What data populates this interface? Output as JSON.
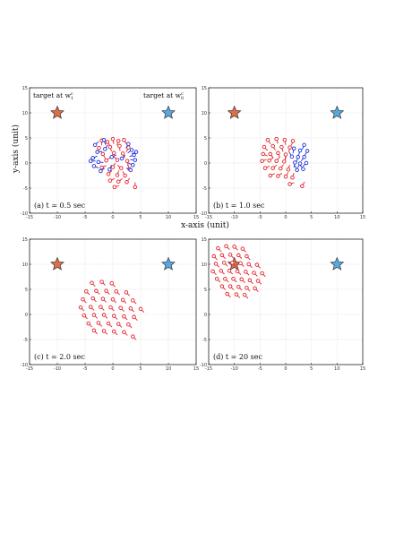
{
  "figure": {
    "xlabel": "x-axis (unit)",
    "ylabel": "y-axis (unit)",
    "target_labels": [
      "target at w",
      "target at w"
    ],
    "target_sub": [
      "1",
      "0"
    ],
    "target_sup": [
      "c",
      "c"
    ]
  },
  "chart_data": [
    {
      "type": "scatter",
      "caption": "(a) t = 0.5 sec",
      "xlim": [
        -15,
        15
      ],
      "ylim": [
        -10,
        15
      ],
      "xticks": [
        -15,
        -10,
        -5,
        0,
        5,
        10,
        15
      ],
      "yticks": [
        -10,
        -5,
        0,
        5,
        10,
        15
      ],
      "grid": true,
      "targets": [
        {
          "x": -10,
          "y": 10,
          "color": "#d9704a"
        },
        {
          "x": 10,
          "y": 10,
          "color": "#5aa7dd"
        }
      ],
      "series": [
        {
          "color": "#e4212b",
          "points": [
            [
              -2,
              4.5,
              0.0,
              -1.0
            ],
            [
              -1,
              4.2,
              0.6,
              -0.8
            ],
            [
              0,
              4.8,
              0.2,
              -1.0
            ],
            [
              1,
              4.4,
              -0.3,
              -0.9
            ],
            [
              2,
              4.6,
              0.5,
              -0.8
            ],
            [
              -2.5,
              3,
              -0.2,
              -1.0
            ],
            [
              -0.5,
              3.2,
              0.3,
              -0.9
            ],
            [
              1.2,
              3.4,
              0.1,
              -1.0
            ],
            [
              2.8,
              3.1,
              -0.4,
              -0.9
            ],
            [
              -1.8,
              1.8,
              0.5,
              -0.9
            ],
            [
              0.2,
              2,
              -0.6,
              -0.8
            ],
            [
              1.8,
              1.9,
              0.4,
              -0.9
            ],
            [
              -1.2,
              0.5,
              0.8,
              0.6
            ],
            [
              0.8,
              0.6,
              -0.7,
              0.7
            ],
            [
              2.6,
              0.4,
              0.2,
              -1.0
            ],
            [
              -2,
              -0.9,
              0.9,
              0.4
            ],
            [
              0,
              -0.8,
              0.5,
              0.8
            ],
            [
              1.5,
              -1,
              -0.8,
              0.6
            ],
            [
              3,
              -1.2,
              -0.4,
              0.9
            ],
            [
              -0.8,
              -2.2,
              0.7,
              0.7
            ],
            [
              0.8,
              -2.4,
              0.3,
              0.95
            ],
            [
              2.2,
              -2.5,
              -0.5,
              0.85
            ],
            [
              -0.5,
              -3.5,
              0.9,
              0.4
            ],
            [
              1,
              -3.7,
              0.8,
              0.6
            ],
            [
              2.5,
              -3.8,
              0.6,
              0.8
            ],
            [
              0.3,
              -4.8,
              0.9,
              0.3
            ],
            [
              4,
              -4.8,
              0,
              1.0
            ]
          ]
        },
        {
          "color": "#1a2fd6",
          "points": [
            [
              -3.2,
              3.6,
              0.7,
              0.7
            ],
            [
              -2.8,
              2.2,
              1.0,
              0.1
            ],
            [
              -3.6,
              1,
              0.9,
              0.4
            ],
            [
              -2.6,
              0.2,
              1.0,
              -0.1
            ],
            [
              -3.4,
              -0.6,
              0.9,
              -0.4
            ],
            [
              -2.2,
              -1.6,
              0.8,
              0.6
            ],
            [
              -1.4,
              2.8,
              0.5,
              0.85
            ],
            [
              -0.2,
              1.2,
              0.9,
              0.4
            ],
            [
              3.4,
              2.6,
              -0.8,
              -0.6
            ],
            [
              3.8,
              1.6,
              -0.9,
              -0.3
            ],
            [
              4,
              0.6,
              -1.0,
              0.1
            ],
            [
              3.6,
              -0.4,
              -0.9,
              0.4
            ],
            [
              3.2,
              -1.4,
              -0.9,
              0.4
            ],
            [
              2.8,
              3.8,
              -0.5,
              -0.85
            ],
            [
              -1.6,
              4.6,
              0.3,
              -0.95
            ],
            [
              1.6,
              0.9,
              0.7,
              0.7
            ],
            [
              -4,
              0.4,
              1.0,
              0
            ],
            [
              -0.6,
              -1.3,
              0.4,
              0.9
            ],
            [
              4.2,
              2.2,
              -0.9,
              -0.4
            ]
          ]
        }
      ]
    },
    {
      "type": "scatter",
      "caption": "(b) t = 1.0 sec",
      "xlim": [
        -15,
        15
      ],
      "ylim": [
        -10,
        15
      ],
      "xticks": [
        -15,
        -10,
        -5,
        0,
        5,
        10,
        15
      ],
      "yticks": [
        -10,
        -5,
        0,
        5,
        10,
        15
      ],
      "grid": true,
      "targets": [
        {
          "x": -10,
          "y": 10,
          "color": "#d9704a"
        },
        {
          "x": 10,
          "y": 10,
          "color": "#5aa7dd"
        }
      ],
      "series": [
        {
          "color": "#e4212b",
          "points": [
            [
              -3.5,
              4.6,
              0.6,
              -0.8
            ],
            [
              -1.8,
              4.8,
              0.3,
              -0.95
            ],
            [
              -0.2,
              4.6,
              0.2,
              -1.0
            ],
            [
              1.4,
              4.4,
              -0.3,
              -0.95
            ],
            [
              -4.2,
              3.2,
              0.7,
              -0.7
            ],
            [
              -2.5,
              3.4,
              0.5,
              -0.85
            ],
            [
              -0.8,
              3.2,
              0.3,
              -0.95
            ],
            [
              0.8,
              3.1,
              -0.2,
              -1.0
            ],
            [
              -4.4,
              1.8,
              0.9,
              -0.4
            ],
            [
              -3,
              1.8,
              0.6,
              -0.8
            ],
            [
              -1.5,
              2,
              0.4,
              -0.9
            ],
            [
              0,
              1.7,
              -0.1,
              -1.0
            ],
            [
              -4.6,
              0.4,
              0.9,
              0.3
            ],
            [
              -3.2,
              0.5,
              0.8,
              0.6
            ],
            [
              -1.8,
              0.4,
              0.6,
              0.8
            ],
            [
              -0.3,
              0.3,
              0.4,
              0.9
            ],
            [
              -4,
              -1,
              0.9,
              0.4
            ],
            [
              -2.5,
              -1,
              0.8,
              0.6
            ],
            [
              -1,
              -1.1,
              0.6,
              0.8
            ],
            [
              0.5,
              -1.3,
              0.3,
              0.95
            ],
            [
              -3,
              -2.5,
              0.9,
              0.4
            ],
            [
              -1.5,
              -2.6,
              0.8,
              0.6
            ],
            [
              0,
              -2.7,
              0.5,
              0.85
            ],
            [
              1.3,
              -2.9,
              0.3,
              0.95
            ],
            [
              0.8,
              -4.2,
              0.9,
              0.3
            ],
            [
              3.2,
              -4.6,
              0.5,
              0.85
            ]
          ]
        },
        {
          "color": "#1a2fd6",
          "points": [
            [
              3.6,
              3.6,
              -0.4,
              -0.9
            ],
            [
              4.2,
              2.4,
              -0.5,
              -0.85
            ],
            [
              2.8,
              2.5,
              -0.3,
              -0.95
            ],
            [
              3.6,
              1.2,
              -0.6,
              -0.8
            ],
            [
              2.4,
              1.2,
              -0.3,
              -0.95
            ],
            [
              4,
              0,
              -0.7,
              -0.7
            ],
            [
              2.8,
              -0.1,
              -0.5,
              -0.85
            ],
            [
              1.8,
              0.1,
              -0.2,
              -1.0
            ],
            [
              3.4,
              -1.2,
              -0.6,
              0.8
            ],
            [
              2.2,
              -1.4,
              -0.4,
              0.9
            ],
            [
              1.6,
              2.9,
              -0.2,
              -1.0
            ],
            [
              1.2,
              1.3,
              -0.5,
              0.85
            ]
          ]
        }
      ]
    },
    {
      "type": "scatter",
      "caption": "(c) t = 2.0 sec",
      "xlim": [
        -15,
        15
      ],
      "ylim": [
        -10,
        15
      ],
      "xticks": [
        -15,
        -10,
        -5,
        0,
        5,
        10,
        15
      ],
      "yticks": [
        -10,
        -5,
        0,
        5,
        10,
        15
      ],
      "grid": true,
      "targets": [
        {
          "x": -10,
          "y": 10,
          "color": "#d9704a"
        },
        {
          "x": 10,
          "y": 10,
          "color": "#5aa7dd"
        }
      ],
      "series": [
        {
          "color": "#e4212b",
          "points": [
            [
              -3.8,
              6.3,
              0.7,
              -0.7
            ],
            [
              -2,
              6.5,
              0.7,
              -0.7
            ],
            [
              -0.2,
              6.2,
              0.7,
              -0.7
            ],
            [
              -4.8,
              4.6,
              0.7,
              -0.7
            ],
            [
              -3,
              4.7,
              0.7,
              -0.7
            ],
            [
              -1.2,
              4.7,
              0.7,
              -0.7
            ],
            [
              0.6,
              4.6,
              0.7,
              -0.7
            ],
            [
              2.4,
              4.4,
              0.7,
              -0.7
            ],
            [
              -5.4,
              3,
              0.7,
              -0.7
            ],
            [
              -3.6,
              3.2,
              0.7,
              -0.7
            ],
            [
              -1.8,
              3.1,
              0.7,
              -0.7
            ],
            [
              0,
              3,
              0.7,
              -0.7
            ],
            [
              1.8,
              2.9,
              0.7,
              -0.7
            ],
            [
              3.6,
              2.8,
              0.7,
              -0.7
            ],
            [
              -5.8,
              1.4,
              0.7,
              -0.7
            ],
            [
              -4,
              1.5,
              0.7,
              -0.7
            ],
            [
              -2.2,
              1.5,
              0.7,
              -0.7
            ],
            [
              -0.4,
              1.4,
              0.7,
              -0.7
            ],
            [
              1.4,
              1.3,
              0.7,
              -0.7
            ],
            [
              3.2,
              1.2,
              0.7,
              -0.7
            ],
            [
              5,
              1.1,
              0.7,
              -0.7
            ],
            [
              -5.2,
              -0.2,
              0.7,
              -0.7
            ],
            [
              -3.4,
              -0.1,
              0.7,
              -0.7
            ],
            [
              -1.6,
              -0.1,
              0.7,
              -0.7
            ],
            [
              0.2,
              -0.3,
              0.7,
              -0.7
            ],
            [
              2,
              -0.4,
              0.7,
              -0.7
            ],
            [
              3.8,
              -0.5,
              0.7,
              -0.7
            ],
            [
              -4.4,
              -1.8,
              0.7,
              -0.7
            ],
            [
              -2.6,
              -1.7,
              0.7,
              -0.7
            ],
            [
              -0.8,
              -1.8,
              0.7,
              -0.7
            ],
            [
              1,
              -1.9,
              0.7,
              -0.7
            ],
            [
              2.8,
              -2,
              0.7,
              -0.7
            ],
            [
              -3.4,
              -3.2,
              0.7,
              -0.7
            ],
            [
              -1.6,
              -3.3,
              0.7,
              -0.7
            ],
            [
              0.2,
              -3.4,
              0.7,
              -0.7
            ],
            [
              2,
              -3.5,
              0.7,
              -0.7
            ],
            [
              3.6,
              -4.4,
              0.7,
              -0.7
            ]
          ]
        }
      ]
    },
    {
      "type": "scatter",
      "caption": "(d) t = 20 sec",
      "xlim": [
        -15,
        15
      ],
      "ylim": [
        -10,
        15
      ],
      "xticks": [
        -15,
        -10,
        -5,
        0,
        5,
        10,
        15
      ],
      "yticks": [
        -10,
        -5,
        0,
        5,
        10,
        15
      ],
      "grid": true,
      "targets": [
        {
          "x": -10,
          "y": 10,
          "color": "#d9704a"
        },
        {
          "x": 10,
          "y": 10,
          "color": "#5aa7dd"
        }
      ],
      "series": [
        {
          "color": "#e4212b",
          "points": [
            [
              -13.2,
              13.2,
              0.7,
              -0.7
            ],
            [
              -11.6,
              13.6,
              0.7,
              -0.7
            ],
            [
              -10,
              13.5,
              0.7,
              -0.7
            ],
            [
              -8.4,
              13.1,
              0.7,
              -0.7
            ],
            [
              -14,
              11.6,
              0.7,
              -0.7
            ],
            [
              -12.4,
              11.8,
              0.7,
              -0.7
            ],
            [
              -10.8,
              11.9,
              0.7,
              -0.7
            ],
            [
              -9.2,
              11.8,
              0.7,
              -0.7
            ],
            [
              -7.6,
              11.6,
              0.7,
              -0.7
            ],
            [
              -13.6,
              10.1,
              0.7,
              -0.7
            ],
            [
              -12,
              10.3,
              0.7,
              -0.7
            ],
            [
              -10.4,
              10.3,
              0.7,
              -0.7
            ],
            [
              -8.8,
              10.2,
              0.7,
              -0.7
            ],
            [
              -7.2,
              10,
              0.7,
              -0.7
            ],
            [
              -5.6,
              9.9,
              0.7,
              -0.7
            ],
            [
              -14.2,
              8.6,
              0.7,
              -0.7
            ],
            [
              -12.6,
              8.7,
              0.7,
              -0.7
            ],
            [
              -11,
              8.7,
              0.7,
              -0.7
            ],
            [
              -9.4,
              8.6,
              0.7,
              -0.7
            ],
            [
              -7.8,
              8.5,
              0.7,
              -0.7
            ],
            [
              -6.2,
              8.3,
              0.7,
              -0.7
            ],
            [
              -4.6,
              8.2,
              0.7,
              -0.7
            ],
            [
              -13.4,
              7.1,
              0.7,
              -0.7
            ],
            [
              -11.8,
              7.1,
              0.7,
              -0.7
            ],
            [
              -10.2,
              7.1,
              0.7,
              -0.7
            ],
            [
              -8.6,
              7,
              0.7,
              -0.7
            ],
            [
              -7,
              6.8,
              0.7,
              -0.7
            ],
            [
              -5.4,
              6.7,
              0.7,
              -0.7
            ],
            [
              -12.4,
              5.6,
              0.7,
              -0.7
            ],
            [
              -10.8,
              5.6,
              0.7,
              -0.7
            ],
            [
              -9.2,
              5.5,
              0.7,
              -0.7
            ],
            [
              -7.6,
              5.3,
              0.7,
              -0.7
            ],
            [
              -6,
              5.2,
              0.7,
              -0.7
            ],
            [
              -11.4,
              4.1,
              0.7,
              -0.7
            ],
            [
              -9.6,
              4,
              0.7,
              -0.7
            ],
            [
              -8,
              3.9,
              0.7,
              -0.7
            ]
          ]
        }
      ]
    }
  ]
}
